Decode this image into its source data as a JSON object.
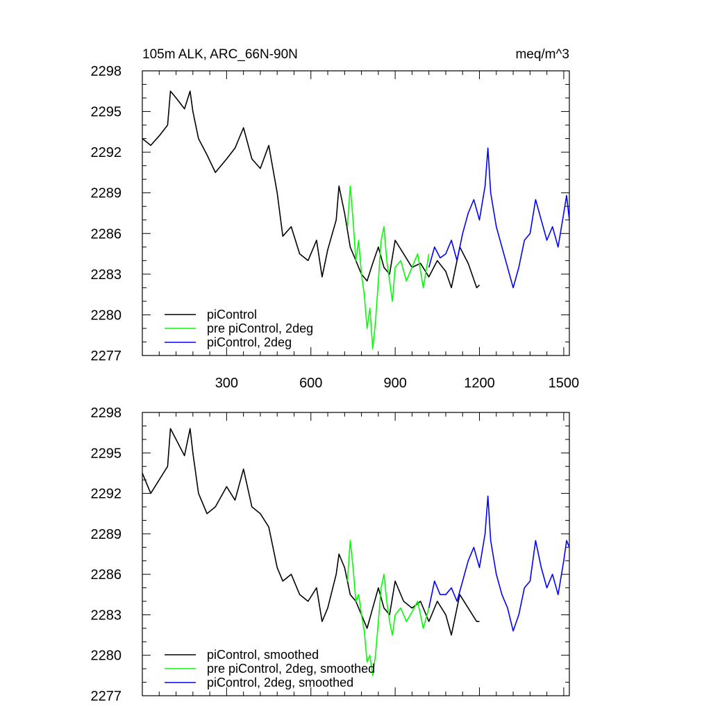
{
  "chart_data": [
    {
      "type": "line",
      "title": "105m ALK, ARC_66N-90N",
      "units": "meq/m^3",
      "xlim": [
        0,
        1520
      ],
      "ylim": [
        2277,
        2298
      ],
      "yticks": [
        2277,
        2280,
        2283,
        2286,
        2289,
        2292,
        2295,
        2298
      ],
      "xticks": [
        300,
        600,
        900,
        1200,
        1500
      ],
      "show_xtick_labels": true,
      "legend_placement": "bottom-left",
      "series": [
        {
          "name": "piControl",
          "color": "#000000",
          "x": [
            0,
            30,
            60,
            90,
            100,
            120,
            150,
            170,
            180,
            200,
            230,
            260,
            300,
            330,
            360,
            390,
            420,
            450,
            480,
            500,
            530,
            560,
            590,
            620,
            640,
            660,
            690,
            700,
            720,
            740,
            760,
            780,
            800,
            820,
            840,
            860,
            880,
            900,
            930,
            960,
            990,
            1020,
            1050,
            1080,
            1100,
            1130,
            1160,
            1190,
            1200
          ],
          "y": [
            2293.0,
            2292.5,
            2293.2,
            2294.0,
            2296.5,
            2296.0,
            2295.2,
            2296.5,
            2295.0,
            2293.0,
            2291.8,
            2290.5,
            2291.5,
            2292.3,
            2293.8,
            2291.5,
            2290.8,
            2292.5,
            2289.0,
            2285.8,
            2286.5,
            2284.5,
            2284.0,
            2285.5,
            2282.8,
            2284.8,
            2287.0,
            2289.5,
            2287.5,
            2285.0,
            2284.0,
            2283.0,
            2282.5,
            2283.8,
            2285.0,
            2283.5,
            2283.0,
            2285.5,
            2284.5,
            2283.5,
            2283.8,
            2282.8,
            2284.0,
            2283.2,
            2282.0,
            2285.0,
            2283.8,
            2282.0,
            2282.2
          ]
        },
        {
          "name": "pre piControl, 2deg",
          "color": "#00ff00",
          "x": [
            730,
            740,
            750,
            760,
            770,
            780,
            790,
            800,
            810,
            820,
            830,
            840,
            850,
            860,
            870,
            880,
            890,
            900,
            920,
            940,
            960,
            980,
            1000,
            1020
          ],
          "y": [
            2286.5,
            2289.5,
            2287.0,
            2284.0,
            2285.5,
            2283.0,
            2281.5,
            2279.0,
            2280.5,
            2277.5,
            2279.5,
            2282.5,
            2285.5,
            2286.5,
            2284.0,
            2282.5,
            2281.0,
            2283.5,
            2284.0,
            2282.5,
            2283.5,
            2284.5,
            2282.0,
            2284.5
          ]
        },
        {
          "name": "piControl, 2deg",
          "color": "#0000ff",
          "x": [
            1020,
            1040,
            1060,
            1080,
            1100,
            1120,
            1140,
            1160,
            1180,
            1200,
            1220,
            1230,
            1240,
            1260,
            1280,
            1300,
            1320,
            1340,
            1360,
            1380,
            1400,
            1420,
            1440,
            1460,
            1480,
            1500,
            1510,
            1520
          ],
          "y": [
            2283.5,
            2285.0,
            2284.2,
            2284.5,
            2285.5,
            2284.0,
            2286.0,
            2287.5,
            2288.5,
            2287.0,
            2289.5,
            2292.3,
            2289.0,
            2286.5,
            2285.0,
            2283.5,
            2282.0,
            2283.5,
            2285.5,
            2286.0,
            2288.5,
            2287.0,
            2285.5,
            2286.5,
            2285.0,
            2287.5,
            2288.8,
            2287.0
          ]
        }
      ]
    },
    {
      "type": "line",
      "xlim": [
        0,
        1520
      ],
      "ylim": [
        2277,
        2298
      ],
      "yticks": [
        2277,
        2280,
        2283,
        2286,
        2289,
        2292,
        2295,
        2298
      ],
      "xticks": [
        300,
        600,
        900,
        1200,
        1500
      ],
      "show_xtick_labels": false,
      "legend_placement": "bottom-left",
      "series": [
        {
          "name": "piControl, smoothed",
          "color": "#000000",
          "x": [
            0,
            30,
            60,
            90,
            100,
            120,
            150,
            170,
            180,
            200,
            230,
            260,
            300,
            330,
            360,
            390,
            420,
            450,
            480,
            500,
            530,
            560,
            590,
            620,
            640,
            660,
            690,
            700,
            720,
            740,
            760,
            780,
            800,
            820,
            840,
            860,
            880,
            900,
            930,
            960,
            990,
            1020,
            1050,
            1080,
            1100,
            1130,
            1160,
            1190,
            1200
          ],
          "y": [
            2293.5,
            2292.0,
            2293.0,
            2294.0,
            2296.8,
            2296.0,
            2294.8,
            2296.8,
            2295.0,
            2292.0,
            2290.5,
            2291.0,
            2292.5,
            2291.5,
            2293.8,
            2291.0,
            2290.5,
            2289.5,
            2286.5,
            2285.5,
            2286.0,
            2284.5,
            2284.0,
            2285.0,
            2282.5,
            2283.5,
            2286.0,
            2287.5,
            2286.5,
            2284.5,
            2284.0,
            2283.0,
            2282.0,
            2283.5,
            2285.0,
            2283.5,
            2283.0,
            2285.5,
            2284.0,
            2283.5,
            2284.0,
            2282.5,
            2284.0,
            2283.0,
            2281.5,
            2284.5,
            2283.5,
            2282.5,
            2282.5
          ]
        },
        {
          "name": "pre piControl, 2deg, smoothed",
          "color": "#00ff00",
          "x": [
            730,
            740,
            750,
            760,
            770,
            780,
            790,
            800,
            810,
            820,
            830,
            840,
            850,
            860,
            870,
            880,
            890,
            900,
            920,
            940,
            960,
            980,
            1000,
            1020
          ],
          "y": [
            2285.5,
            2288.5,
            2286.5,
            2284.0,
            2284.5,
            2283.0,
            2281.8,
            2279.5,
            2280.0,
            2278.5,
            2280.0,
            2282.5,
            2285.0,
            2286.0,
            2284.0,
            2282.5,
            2281.5,
            2283.0,
            2283.5,
            2282.5,
            2283.2,
            2284.0,
            2282.0,
            2283.5
          ]
        },
        {
          "name": "piControl, 2deg, smoothed",
          "color": "#0000ff",
          "x": [
            1020,
            1040,
            1060,
            1080,
            1100,
            1120,
            1140,
            1160,
            1180,
            1200,
            1220,
            1230,
            1240,
            1260,
            1280,
            1300,
            1320,
            1340,
            1360,
            1380,
            1400,
            1420,
            1440,
            1460,
            1480,
            1500,
            1510,
            1520
          ],
          "y": [
            2283.5,
            2285.5,
            2284.5,
            2284.5,
            2285.0,
            2284.0,
            2285.5,
            2287.0,
            2288.0,
            2286.5,
            2289.0,
            2291.8,
            2288.5,
            2286.0,
            2284.5,
            2283.5,
            2281.8,
            2283.0,
            2285.0,
            2285.5,
            2288.5,
            2286.5,
            2285.0,
            2286.0,
            2284.5,
            2287.0,
            2288.5,
            2288.0
          ]
        }
      ]
    }
  ]
}
